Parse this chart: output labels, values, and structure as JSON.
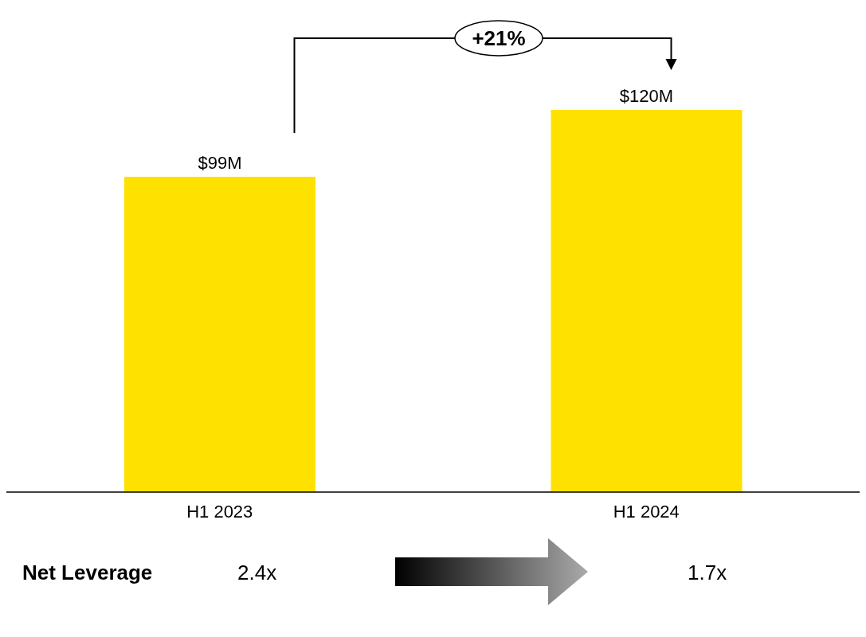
{
  "chart_data": {
    "type": "bar",
    "categories": [
      "H1 2023",
      "H1 2024"
    ],
    "values": [
      99,
      120
    ],
    "color": "#ffe100",
    "value_labels": [
      "$99M",
      "$120M"
    ],
    "annotations": [
      "+21%",
      "Net Leverage",
      "2.4x",
      "1.7x"
    ]
  }
}
